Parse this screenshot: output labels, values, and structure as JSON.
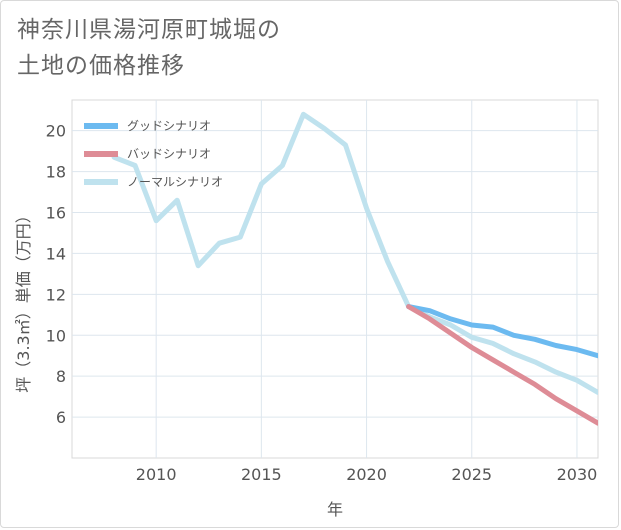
{
  "title_lines": [
    "神奈川県湯河原町城堀の",
    "土地の価格推移"
  ],
  "chart_data": {
    "type": "line",
    "title": "神奈川県湯河原町城堀の土地の価格推移",
    "xlabel": "年",
    "ylabel": "坪（3.3㎡）単価（万円）",
    "xlim": [
      2006,
      2031
    ],
    "ylim": [
      4,
      21.5
    ],
    "xticks": [
      2010,
      2015,
      2020,
      2025,
      2030
    ],
    "yticks": [
      6,
      8,
      10,
      12,
      14,
      16,
      18,
      20
    ],
    "grid": true,
    "legend_position": "top-left",
    "series": [
      {
        "name": "グッドシナリオ",
        "color": "#6cbaf0",
        "x": [
          2022,
          2023,
          2024,
          2025,
          2026,
          2027,
          2028,
          2029,
          2030,
          2031
        ],
        "y": [
          11.4,
          11.2,
          10.8,
          10.5,
          10.4,
          10.0,
          9.8,
          9.5,
          9.3,
          9.0
        ]
      },
      {
        "name": "バッドシナリオ",
        "color": "#de8c96",
        "x": [
          2022,
          2023,
          2024,
          2025,
          2026,
          2027,
          2028,
          2029,
          2030,
          2031
        ],
        "y": [
          11.4,
          10.8,
          10.1,
          9.4,
          8.8,
          8.2,
          7.6,
          6.9,
          6.3,
          5.7
        ]
      },
      {
        "name": "ノーマルシナリオ",
        "color": "#bfe2ee",
        "x": [
          2008,
          2009,
          2010,
          2011,
          2012,
          2013,
          2014,
          2015,
          2016,
          2017,
          2018,
          2019,
          2020,
          2021,
          2022,
          2023,
          2024,
          2025,
          2026,
          2027,
          2028,
          2029,
          2030,
          2031
        ],
        "y": [
          18.7,
          18.3,
          15.6,
          16.6,
          13.4,
          14.5,
          14.8,
          17.4,
          18.3,
          20.8,
          20.1,
          19.3,
          16.2,
          13.6,
          11.4,
          10.9,
          10.5,
          9.9,
          9.6,
          9.1,
          8.7,
          8.2,
          7.8,
          7.2
        ]
      }
    ]
  }
}
